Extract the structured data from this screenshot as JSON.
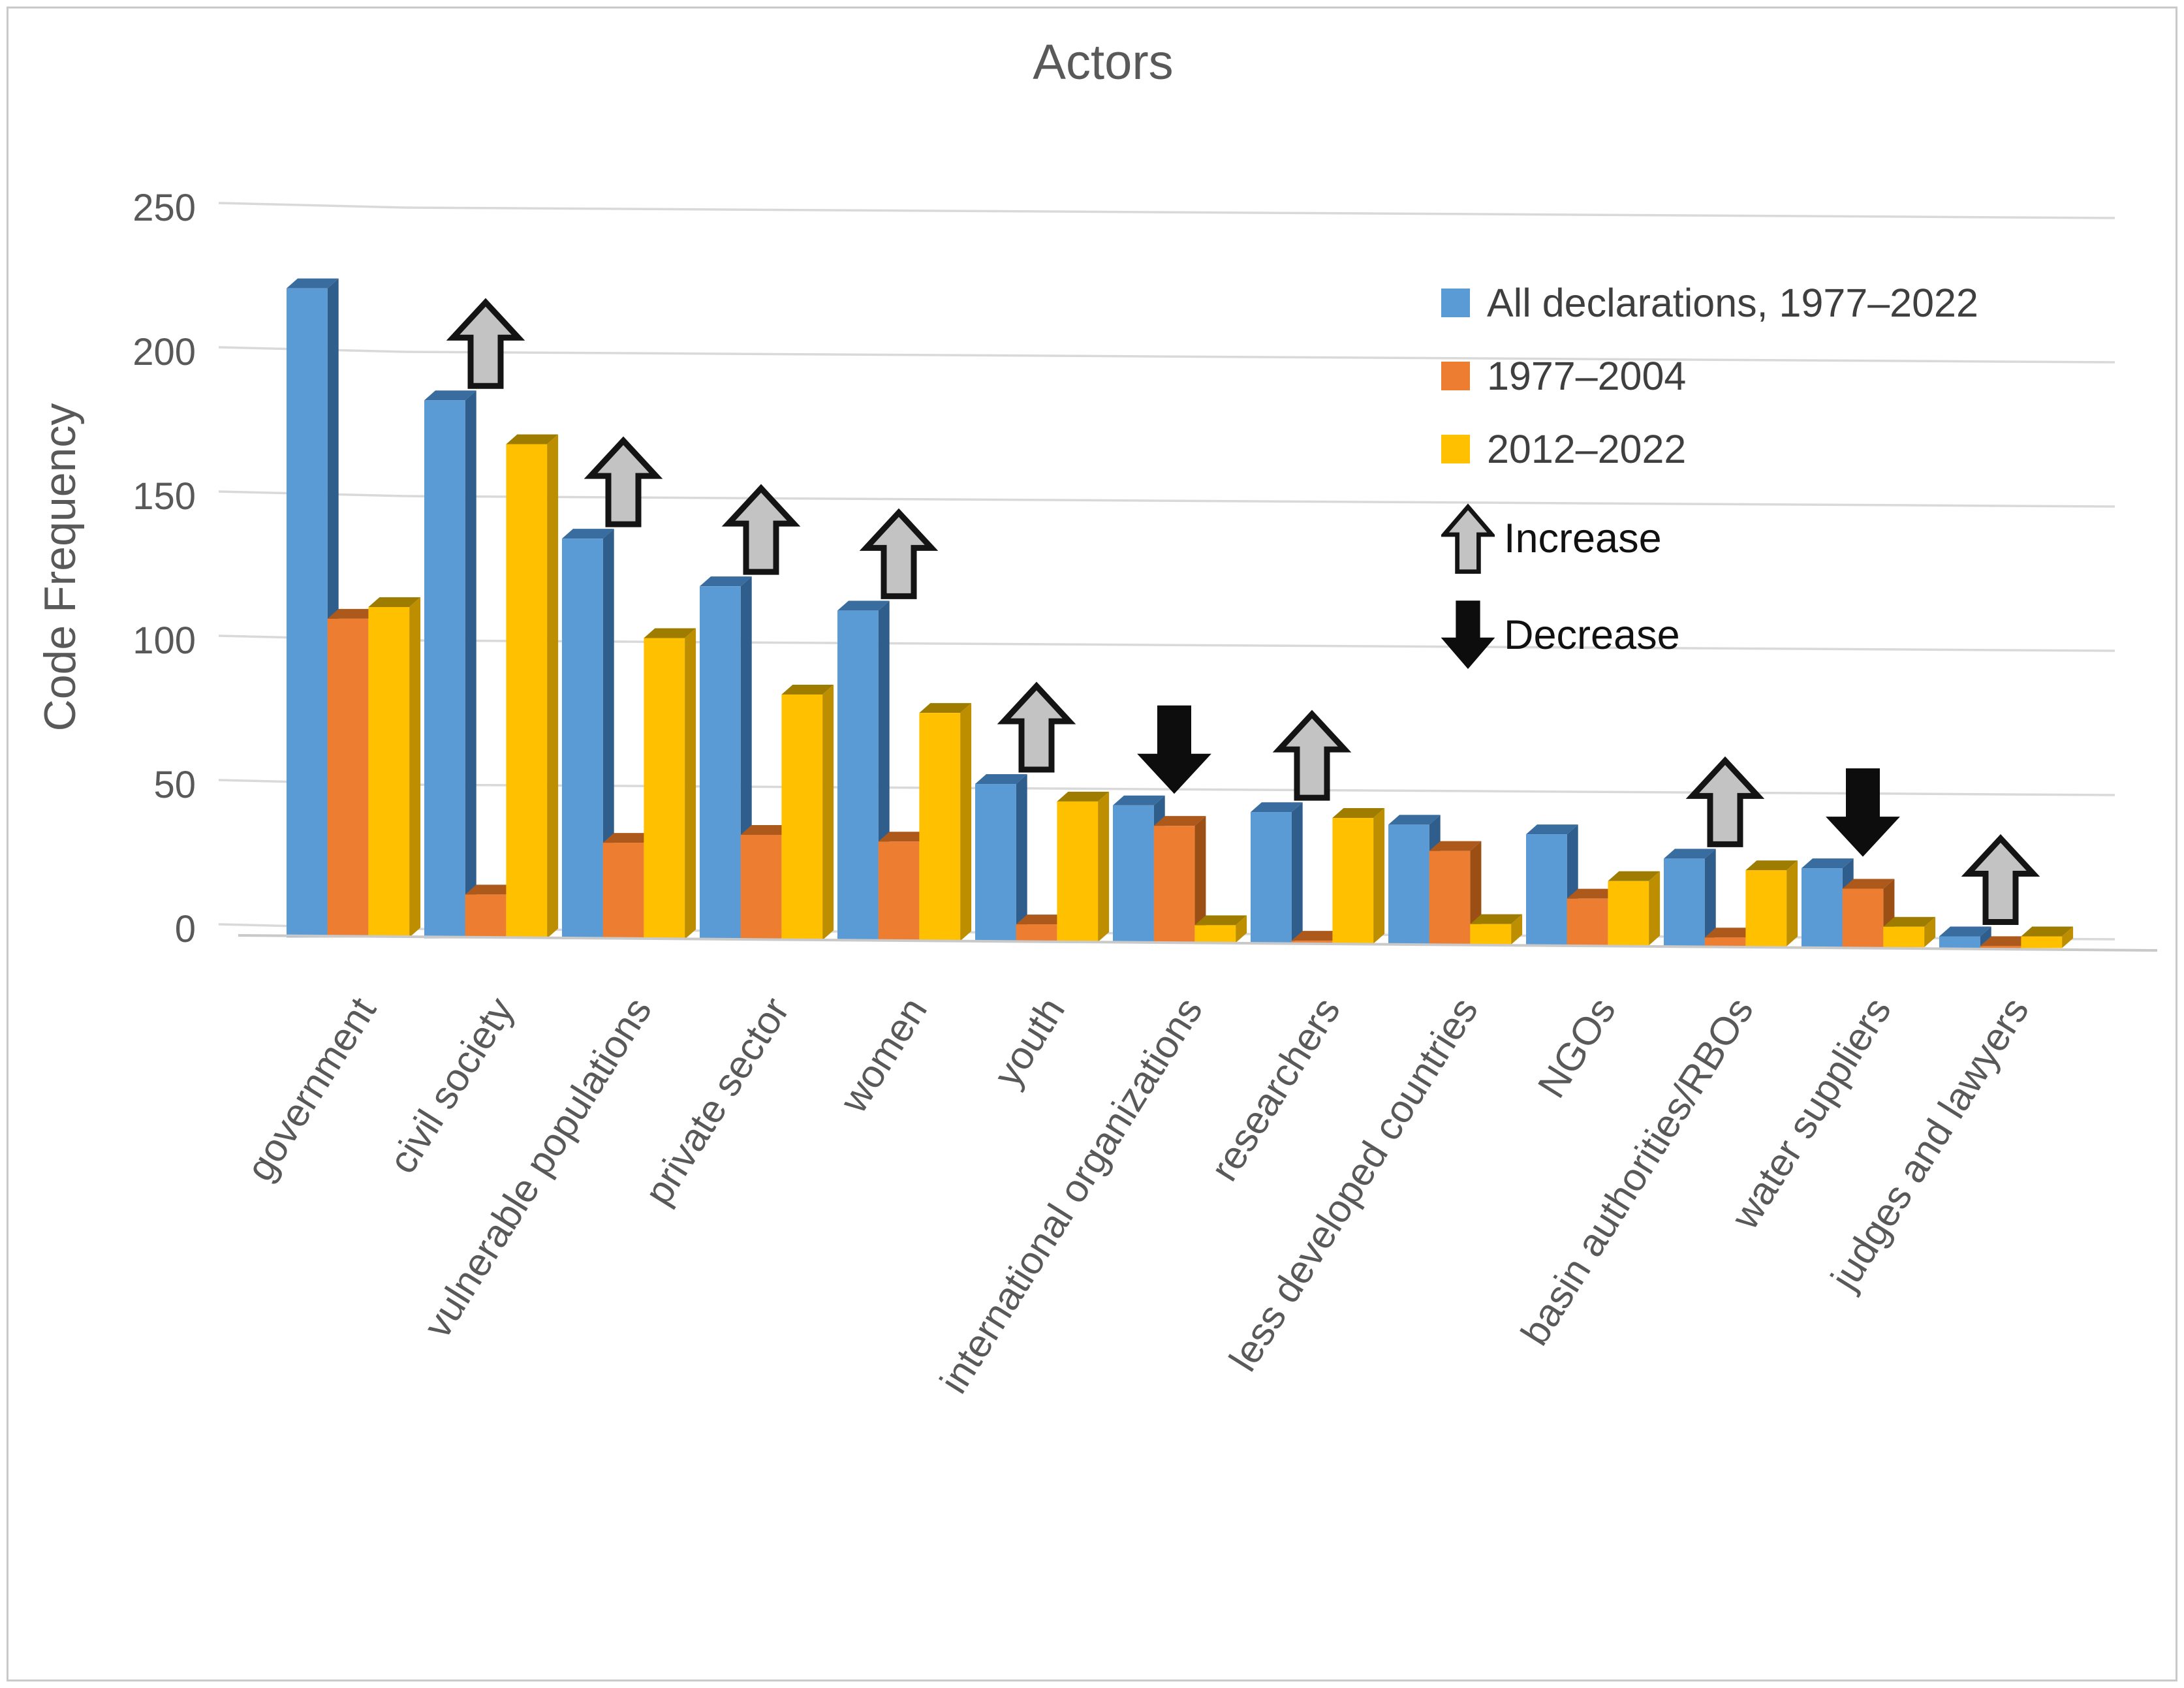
{
  "chart_data": {
    "type": "bar",
    "title": "Actors",
    "ylabel": "Code Frequency",
    "ylim": [
      0,
      250
    ],
    "yticks": [
      0,
      50,
      100,
      150,
      200,
      250
    ],
    "grid": true,
    "legend_position": "top-right",
    "style": "3d-clustered-column",
    "categories": [
      "government",
      "civil society",
      "vulnerable populations",
      "private sector",
      "women",
      "youth",
      "international organizations",
      "researchers",
      "less developed countries",
      "NGOs",
      "basin authorities/RBOs",
      "water suppliers",
      "judges and lawyers"
    ],
    "series": [
      {
        "name": "All declarations, 1977–2022",
        "color": "#5B9BD5",
        "color_top": "#3A6D9F",
        "color_side": "#305E8C",
        "values": [
          222,
          184,
          137,
          121,
          113,
          54,
          47,
          45,
          41,
          38,
          30,
          27,
          4
        ]
      },
      {
        "name": "1977–2004",
        "color": "#ED7D31",
        "color_top": "#AE591C",
        "color_side": "#9C4F15",
        "values": [
          109,
          15,
          33,
          36,
          34,
          6,
          40,
          1,
          32,
          16,
          3,
          20,
          0
        ]
      },
      {
        "name": "2012–2022",
        "color": "#FFC000",
        "color_top": "#9E7C00",
        "color_side": "#BD8F00",
        "values": [
          113,
          169,
          103,
          84,
          78,
          48,
          6,
          43,
          7,
          22,
          26,
          7,
          4
        ]
      }
    ],
    "trend_arrows": [
      {
        "category": "civil society",
        "direction": "up"
      },
      {
        "category": "vulnerable populations",
        "direction": "up"
      },
      {
        "category": "private sector",
        "direction": "up"
      },
      {
        "category": "women",
        "direction": "up"
      },
      {
        "category": "youth",
        "direction": "up"
      },
      {
        "category": "international organizations",
        "direction": "down"
      },
      {
        "category": "researchers",
        "direction": "up"
      },
      {
        "category": "basin authorities/RBOs",
        "direction": "up"
      },
      {
        "category": "water suppliers",
        "direction": "down"
      },
      {
        "category": "judges and lawyers",
        "direction": "up"
      }
    ],
    "arrow_legend": {
      "up_label": "Increase",
      "down_label": "Decrease"
    },
    "colors": {
      "gridline": "#D9D9D9",
      "floor_line": "#C9C9C9",
      "axis_text": "#595959",
      "legend_text": "#3F3F3F",
      "arrow_up_fill": "#C3C3C3",
      "arrow_down_fill": "#0D0D0D",
      "arrow_stroke": "#141414",
      "background": "#FFFFFF",
      "frame_border": "#C9C9C9"
    }
  }
}
